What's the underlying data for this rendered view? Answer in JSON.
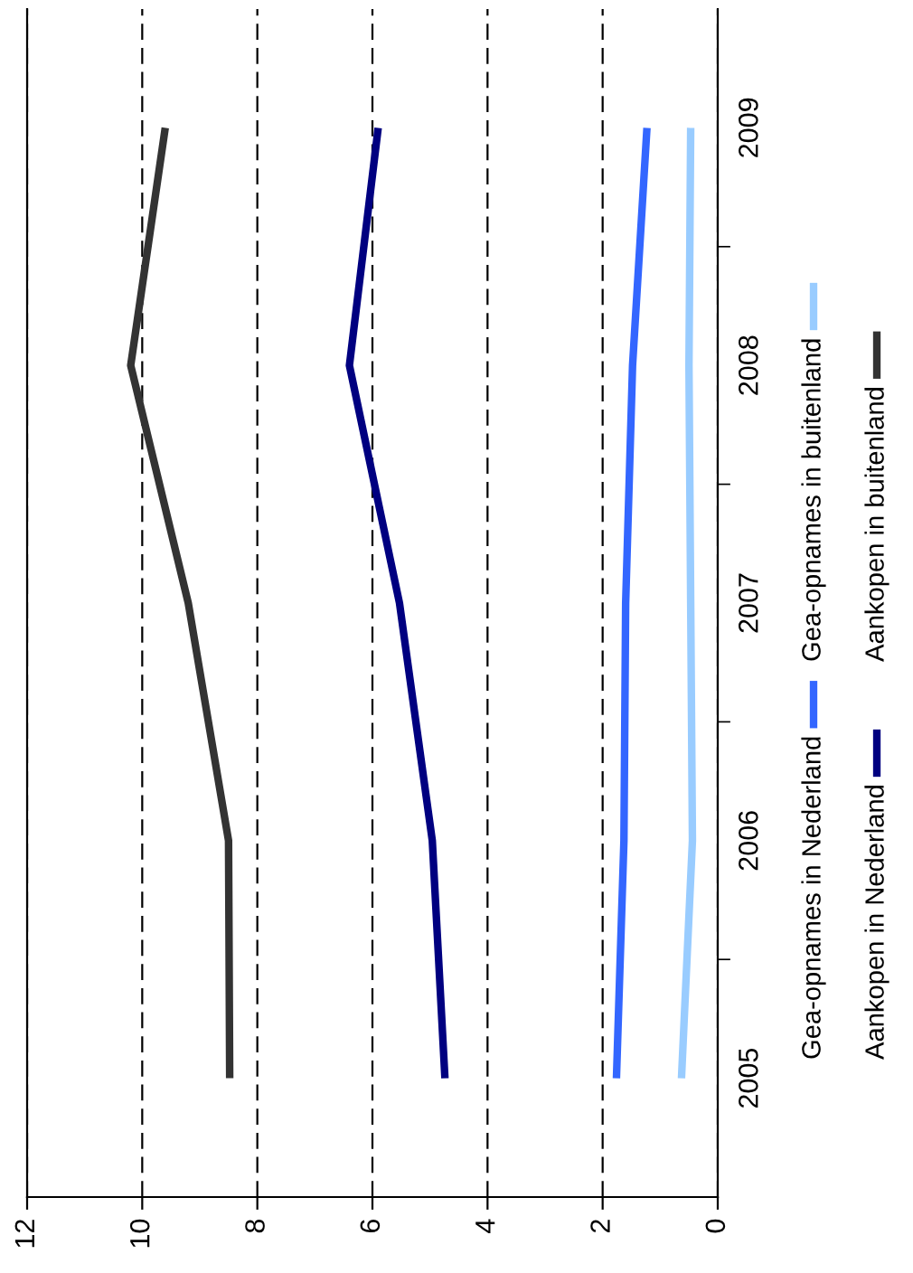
{
  "chart_data": {
    "type": "line",
    "orientation": "horizontal",
    "categories": [
      "2009",
      "2008",
      "2007",
      "2006",
      "2005"
    ],
    "series": [
      {
        "name": "Gea-opnames in Nederland",
        "color": "#3366ff",
        "values": [
          1.23,
          1.48,
          1.6,
          1.63,
          1.76
        ]
      },
      {
        "name": "Aankopen in Nederland",
        "color": "#000080",
        "values": [
          5.9,
          6.4,
          5.53,
          4.96,
          4.74
        ]
      },
      {
        "name": "Gea-opnames in buitenland",
        "color": "#99ccff",
        "values": [
          0.47,
          0.5,
          0.47,
          0.44,
          0.63
        ]
      },
      {
        "name": "Aankopen in buitenland",
        "color": "#333333",
        "values": [
          9.6,
          10.2,
          9.2,
          8.5,
          8.48
        ]
      }
    ],
    "xlim": [
      12,
      0
    ],
    "xticks": [
      12,
      10,
      8,
      6,
      4,
      2,
      0
    ],
    "grid": "x",
    "legend": "right",
    "marker": "none",
    "line_style": "solid"
  }
}
